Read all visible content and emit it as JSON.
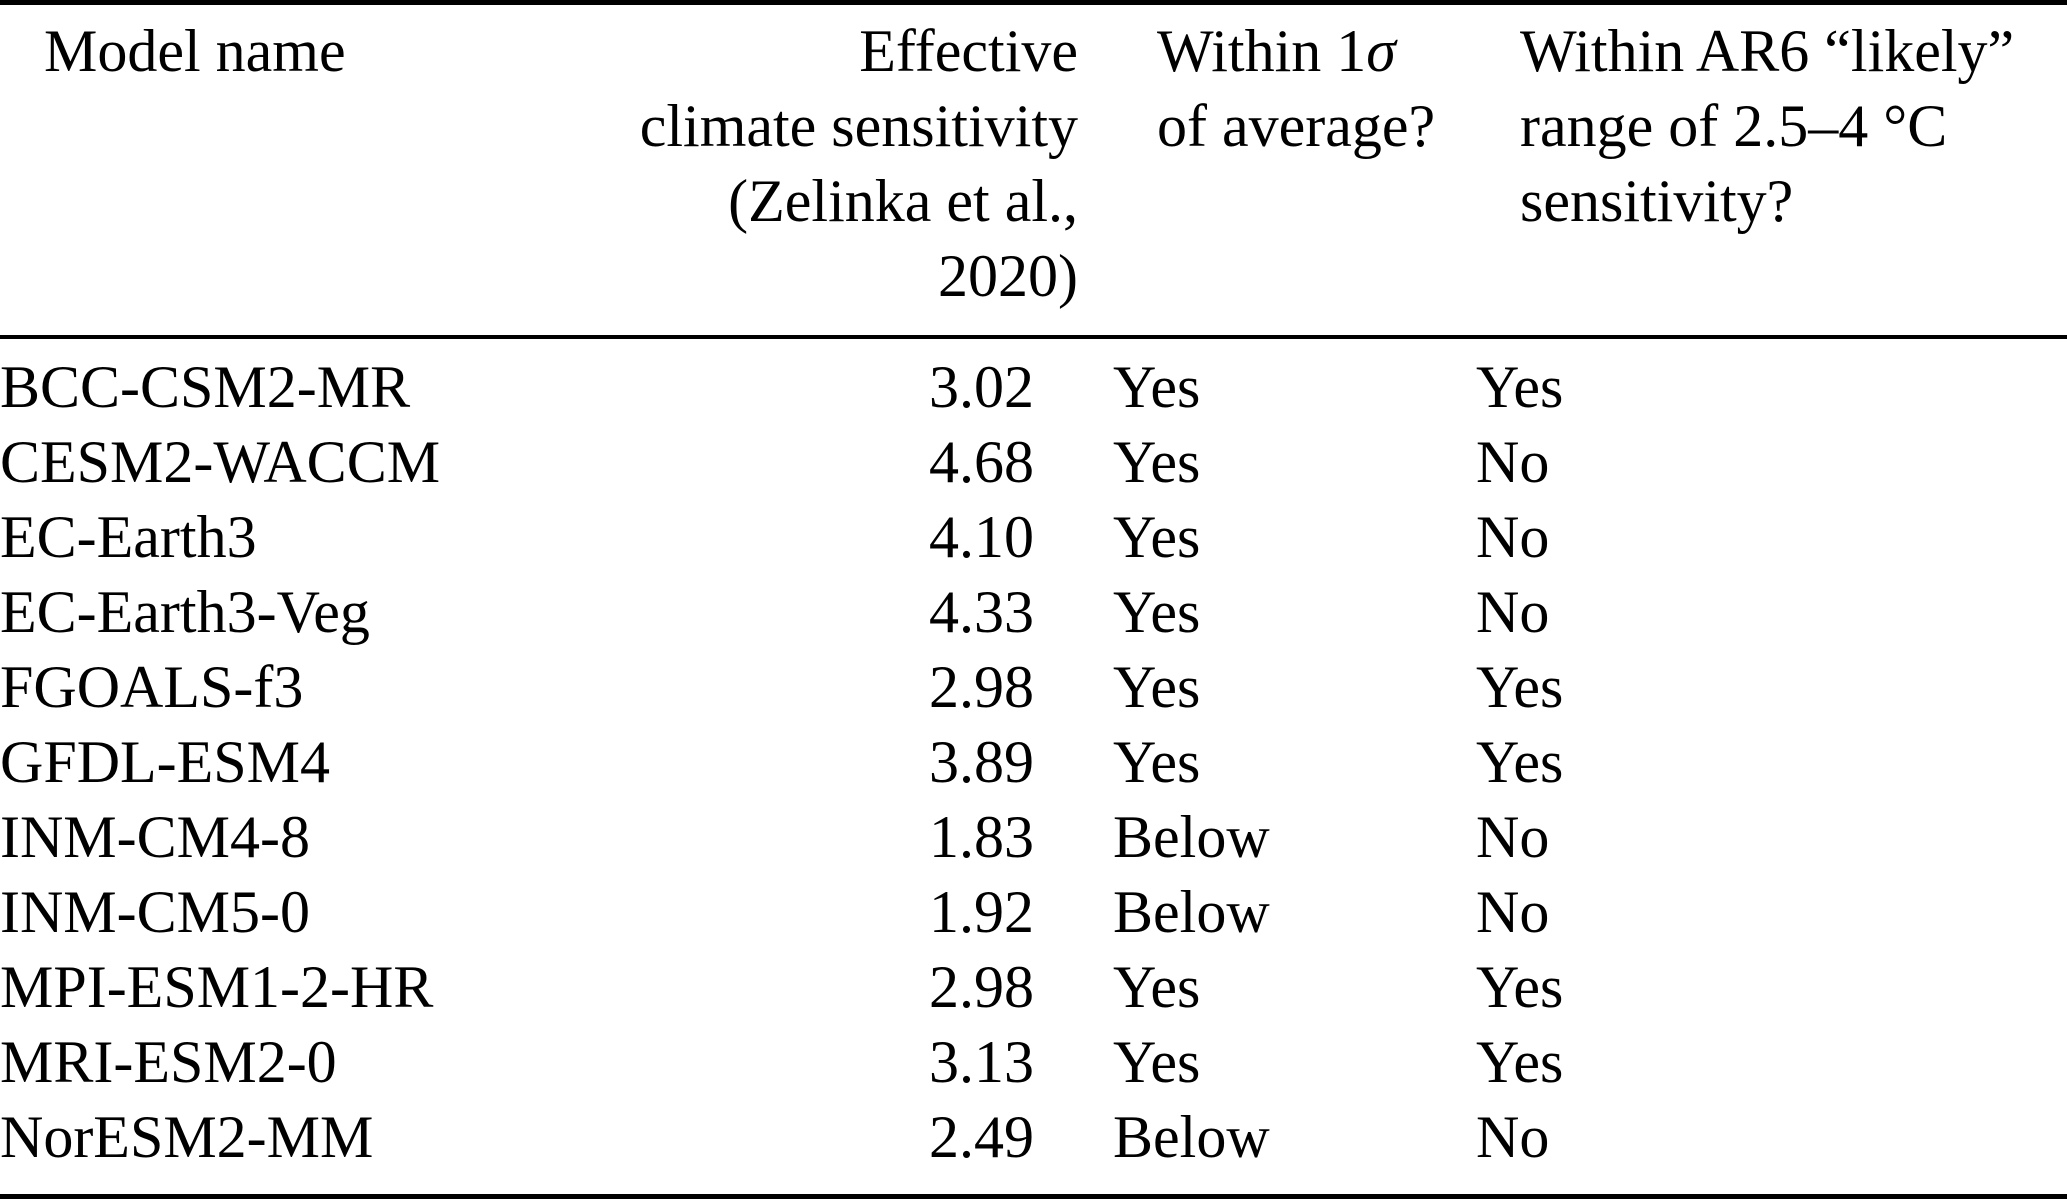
{
  "table": {
    "header": {
      "col1": "Model name",
      "col2_lines": [
        "Effective",
        "climate sensitivity",
        "(Zelinka et al., 2020)"
      ],
      "col3_line1_prefix": "Within 1",
      "col3_sigma": "σ",
      "col3_line2": "of average?",
      "col4_lines": [
        "Within AR6 “likely”",
        "range of 2.5–4 °C",
        "sensitivity?"
      ]
    },
    "rows": [
      {
        "model": "BCC-CSM2-MR",
        "sensitivity": "3.02",
        "within_1sigma": "Yes",
        "within_ar6": "Yes"
      },
      {
        "model": "CESM2-WACCM",
        "sensitivity": "4.68",
        "within_1sigma": "Yes",
        "within_ar6": "No"
      },
      {
        "model": "EC-Earth3",
        "sensitivity": "4.10",
        "within_1sigma": "Yes",
        "within_ar6": "No"
      },
      {
        "model": "EC-Earth3-Veg",
        "sensitivity": "4.33",
        "within_1sigma": "Yes",
        "within_ar6": "No"
      },
      {
        "model": "FGOALS-f3",
        "sensitivity": "2.98",
        "within_1sigma": "Yes",
        "within_ar6": "Yes"
      },
      {
        "model": "GFDL-ESM4",
        "sensitivity": "3.89",
        "within_1sigma": "Yes",
        "within_ar6": "Yes"
      },
      {
        "model": "INM-CM4-8",
        "sensitivity": "1.83",
        "within_1sigma": "Below",
        "within_ar6": "No"
      },
      {
        "model": "INM-CM5-0",
        "sensitivity": "1.92",
        "within_1sigma": "Below",
        "within_ar6": "No"
      },
      {
        "model": "MPI-ESM1-2-HR",
        "sensitivity": "2.98",
        "within_1sigma": "Yes",
        "within_ar6": "Yes"
      },
      {
        "model": "MRI-ESM2-0",
        "sensitivity": "3.13",
        "within_1sigma": "Yes",
        "within_ar6": "Yes"
      },
      {
        "model": "NorESM2-MM",
        "sensitivity": "2.49",
        "within_1sigma": "Below",
        "within_ar6": "No"
      }
    ],
    "colors": {
      "text": "#000000",
      "background": "#ffffff",
      "rule": "#000000"
    }
  }
}
